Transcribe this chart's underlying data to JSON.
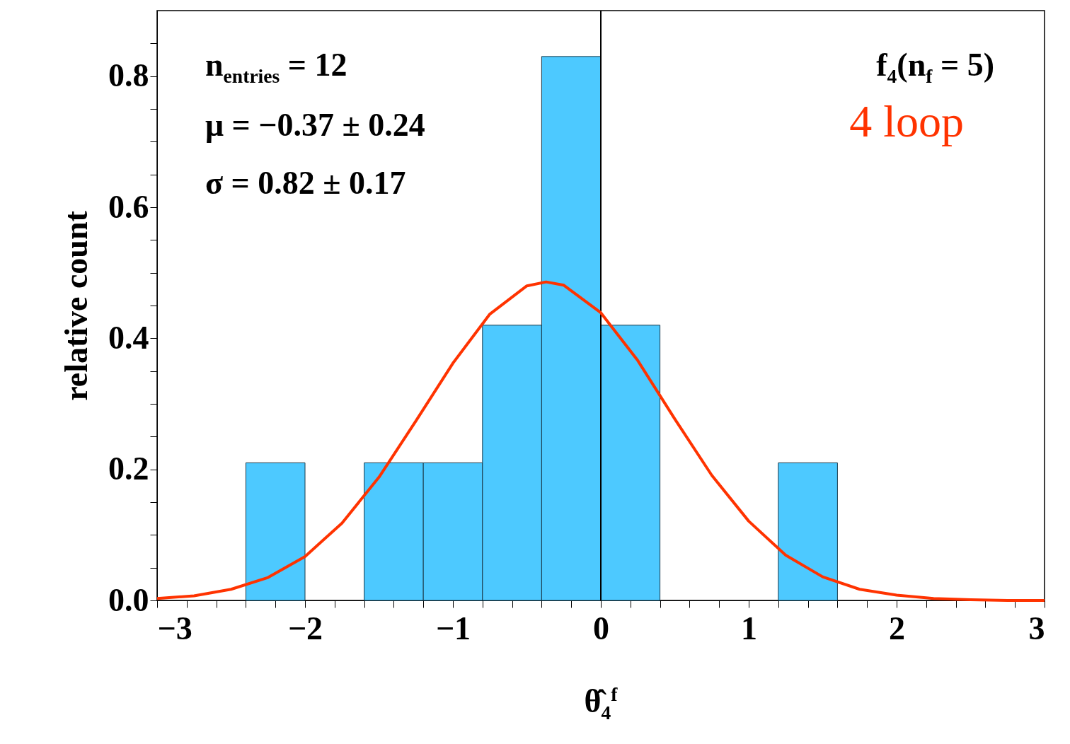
{
  "chart_data": {
    "type": "histogram",
    "ylabel": "relative count",
    "xlabel": "θ̂$_{4}$$^{f}$",
    "bins": [
      -2.4,
      -2.0,
      -1.6,
      -1.2,
      -0.8,
      -0.4,
      0,
      0.4,
      0.8,
      1.2,
      1.6
    ],
    "values": [
      0.21,
      0,
      0.21,
      0.21,
      0.42,
      0.83,
      0.42,
      0,
      0,
      0.21
    ],
    "color": "#4dc9ff",
    "series": [
      {
        "type": "line",
        "name": "4 loop",
        "color": "#ff3300",
        "x": [
          -3,
          -2.75,
          -2.5,
          -2.25,
          -2,
          -1.75,
          -1.5,
          -1.25,
          -1,
          -0.75,
          -0.5,
          -0.37,
          -0.25,
          0,
          0.25,
          0.5,
          0.75,
          1,
          1.25,
          1.5,
          1.75,
          2,
          2.25,
          2.5,
          2.75,
          3
        ],
        "values": [
          0.003,
          0.007,
          0.017,
          0.035,
          0.067,
          0.118,
          0.188,
          0.274,
          0.362,
          0.437,
          0.48,
          0.486,
          0.481,
          0.439,
          0.366,
          0.277,
          0.191,
          0.121,
          0.069,
          0.036,
          0.017,
          0.008,
          0.003,
          0.001,
          0,
          0
        ]
      }
    ],
    "ref_lines": [
      {
        "axis": "x",
        "value": 0,
        "color": "#000000"
      }
    ],
    "annotations": [
      "n$_{entries}$ = 12",
      "μ = −0.37 ± 0.24",
      "σ = 0.82 ± 0.17",
      "f$_{4}$(n$_{f}$ = 5)"
    ],
    "xlim": [
      -3,
      3
    ],
    "xticks": [
      -3,
      {
        "value": -2.8,
        "label": null
      },
      {
        "value": -2.6,
        "label": null
      },
      {
        "value": -2.4,
        "label": null
      },
      {
        "value": -2.2,
        "label": null
      },
      -2,
      {
        "value": -1.8,
        "label": null
      },
      {
        "value": -1.6,
        "label": null
      },
      {
        "value": -1.4,
        "label": null
      },
      {
        "value": -1.2,
        "label": null
      },
      -1,
      {
        "value": -0.8,
        "label": null
      },
      {
        "value": -0.6,
        "label": null
      },
      {
        "value": -0.4,
        "label": null
      },
      {
        "value": -0.2,
        "label": null
      },
      0,
      {
        "value": 0.2,
        "label": null
      },
      {
        "value": 0.4,
        "label": null
      },
      {
        "value": 0.6,
        "label": null
      },
      {
        "value": 0.8,
        "label": null
      },
      1,
      {
        "value": 1.2,
        "label": null
      },
      {
        "value": 1.4,
        "label": null
      },
      {
        "value": 1.6,
        "label": null
      },
      {
        "value": 1.8,
        "label": null
      },
      2,
      {
        "value": 2.2,
        "label": null
      },
      {
        "value": 2.4,
        "label": null
      },
      {
        "value": 2.6,
        "label": null
      },
      {
        "value": 2.8,
        "label": null
      },
      3
    ],
    "ylim": [
      0,
      0.9
    ],
    "yticks": [
      {
        "value": 0,
        "label": "0.0"
      },
      {
        "value": 0.05,
        "label": null
      },
      {
        "value": 0.1,
        "label": null
      },
      {
        "value": 0.15,
        "label": null
      },
      0.2,
      {
        "value": 0.25,
        "label": null
      },
      {
        "value": 0.3,
        "label": null
      },
      {
        "value": 0.35,
        "label": null
      },
      0.4,
      {
        "value": 0.45,
        "label": null
      },
      {
        "value": 0.5,
        "label": null
      },
      {
        "value": 0.55,
        "label": null
      },
      0.6,
      {
        "value": 0.65,
        "label": null
      },
      {
        "value": 0.7,
        "label": null
      },
      {
        "value": 0.75,
        "label": null
      },
      0.8,
      {
        "value": 0.85,
        "label": null
      }
    ],
    "grid": false
  }
}
